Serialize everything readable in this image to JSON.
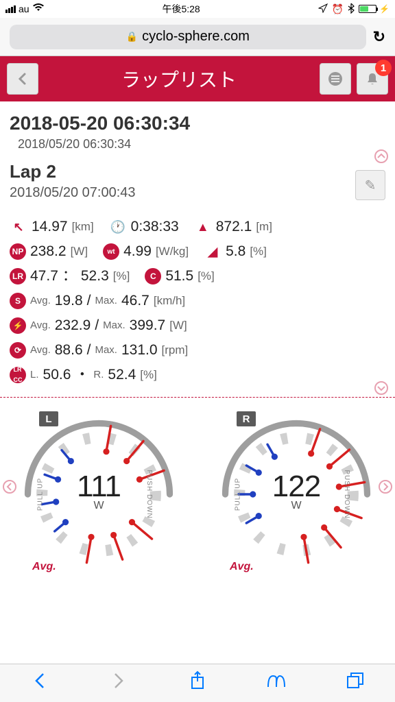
{
  "status": {
    "carrier": "au",
    "time": "午後5:28"
  },
  "browser": {
    "url": "cyclo-sphere.com"
  },
  "header": {
    "title": "ラップリスト",
    "badge": "1"
  },
  "session": {
    "title": "2018-05-20 06:30:34",
    "subtitle": "2018/05/20 06:30:34",
    "lap_title": "Lap 2",
    "lap_time": "2018/05/20 07:00:43"
  },
  "stats": {
    "distance": "14.97",
    "distance_unit": "[km]",
    "duration": "0:38:33",
    "elevation": "872.1",
    "elevation_unit": "[m]",
    "np": "238.2",
    "np_unit": "[W]",
    "wkg": "4.99",
    "wkg_unit": "[W/kg]",
    "grade": "5.8",
    "grade_unit": "[%]",
    "lr_l": "47.7",
    "lr_r": "52.3",
    "lr_unit": "[%]",
    "c_val": "51.5",
    "c_unit": "[%]",
    "speed_avg": "19.8",
    "speed_max": "46.7",
    "speed_unit": "[km/h]",
    "power_avg": "232.9",
    "power_max": "399.7",
    "power_unit": "[W]",
    "cadence_avg": "88.6",
    "cadence_max": "131.0",
    "cadence_unit": "[rpm]",
    "lrcc_l": "50.6",
    "lrcc_r": "52.4",
    "lrcc_unit": "[%]",
    "avg_label": "Avg.",
    "max_label": "Max.",
    "l_label": "L.",
    "r_label": "R."
  },
  "gauges": {
    "left": {
      "tag": "L",
      "value": "111",
      "unit": "W",
      "avg": "Avg.",
      "ticks": 12,
      "ring_color": "#d0d0d0",
      "arc_color": "#9e9e9e",
      "needles_red": [
        10,
        40,
        70,
        130,
        160,
        190
      ],
      "needles_blue": [
        230,
        260,
        290,
        320
      ]
    },
    "right": {
      "tag": "R",
      "value": "122",
      "unit": "W",
      "avg": "Avg.",
      "ticks": 12,
      "ring_color": "#d0d0d0",
      "arc_color": "#9e9e9e",
      "needles_red": [
        20,
        50,
        80,
        110,
        140,
        170
      ],
      "needles_blue": [
        240,
        270,
        300,
        330
      ]
    }
  },
  "colors": {
    "accent": "#c3143c",
    "red": "#d62020",
    "blue": "#2040c0"
  },
  "labels": {
    "pull_up": "PULL UP",
    "push_down": "PUSH DOWN",
    "colon_sep": "：",
    "slash": "/",
    "dot": "・"
  }
}
